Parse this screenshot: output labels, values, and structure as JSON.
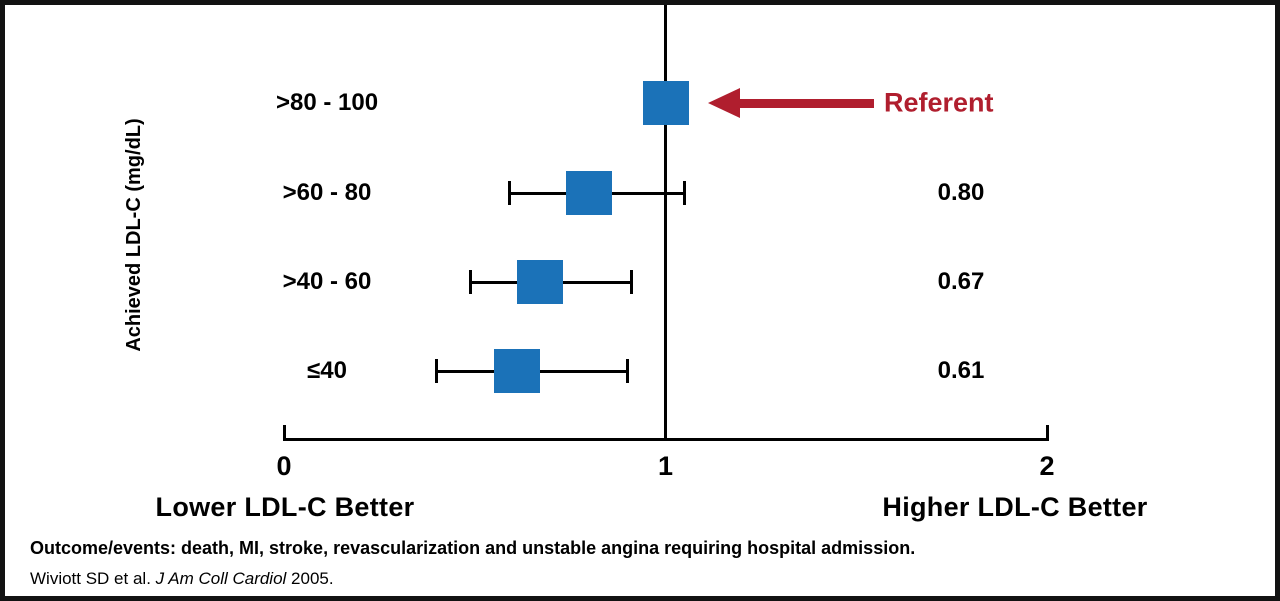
{
  "chart_data": {
    "type": "forest",
    "title": "",
    "ylabel": "Achieved LDL-C (mg/dL)",
    "x_axis": {
      "min": 0,
      "max": 2,
      "reference_line": 1,
      "ticks": [
        {
          "value": 0,
          "label": "0"
        },
        {
          "value": 1,
          "label": "1"
        },
        {
          "value": 2,
          "label": "2"
        }
      ]
    },
    "rows": [
      {
        "label": ">80 - 100",
        "estimate": 1.0,
        "ci_low": null,
        "ci_high": null,
        "referent": true,
        "annotation": "Referent"
      },
      {
        "label": ">60 - 80",
        "estimate": 0.8,
        "ci_low": 0.59,
        "ci_high": 1.05,
        "referent": false,
        "value_label": "0.80"
      },
      {
        "label": ">40 - 60",
        "estimate": 0.67,
        "ci_low": 0.49,
        "ci_high": 0.91,
        "referent": false,
        "value_label": "0.67"
      },
      {
        "label": "≤40",
        "estimate": 0.61,
        "ci_low": 0.4,
        "ci_high": 0.9,
        "referent": false,
        "value_label": "0.61"
      }
    ],
    "annotations": {
      "left_axis_caption": "Lower LDL-C Better",
      "right_axis_caption": "Higher LDL-C Better"
    },
    "footer": {
      "outcome": "Outcome/events: death, MI, stroke, revascularization and unstable angina requiring hospital admission.",
      "citation_prefix": "Wiviott SD et al. ",
      "citation_journal": "J Am Coll Cardiol",
      "citation_suffix": " 2005."
    },
    "colors": {
      "marker": "#1b72b8",
      "referent": "#b01e2e",
      "axis": "#000000"
    }
  }
}
